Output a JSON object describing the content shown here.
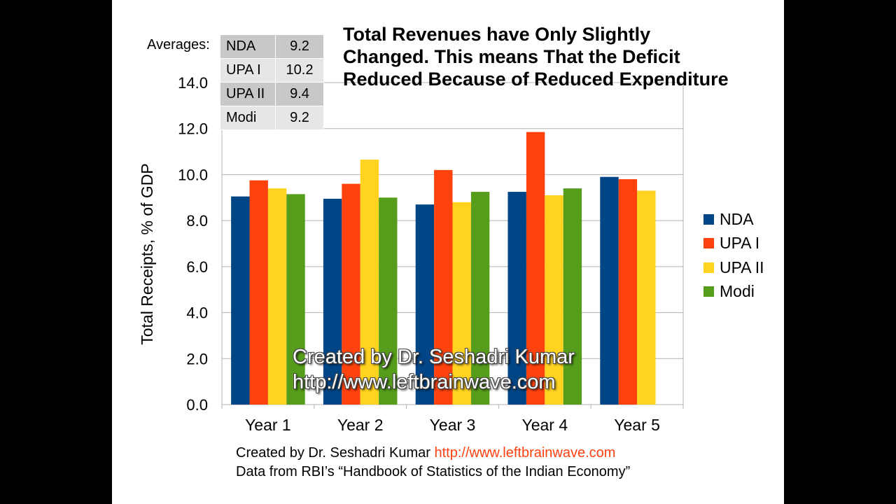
{
  "chart_data": {
    "type": "bar",
    "title": "Total Revenues have Only Slightly Changed. This means That the Deficit Reduced Because of Reduced Expenditure",
    "xlabel": "",
    "ylabel": "Total Receipts, % of GDP",
    "ylim": [
      0,
      14
    ],
    "yticks": [
      "0.0",
      "2.0",
      "4.0",
      "6.0",
      "8.0",
      "10.0",
      "12.0",
      "14.0"
    ],
    "categories": [
      "Year 1",
      "Year 2",
      "Year 3",
      "Year 4",
      "Year 5"
    ],
    "series": [
      {
        "name": "NDA",
        "color": "#004586",
        "values": [
          9.05,
          8.95,
          8.7,
          9.25,
          9.9
        ]
      },
      {
        "name": "UPA I",
        "color": "#ff420e",
        "values": [
          9.75,
          9.6,
          10.2,
          11.85,
          9.8
        ]
      },
      {
        "name": "UPA II",
        "color": "#ffd320",
        "values": [
          9.4,
          10.65,
          8.8,
          9.1,
          9.3
        ]
      },
      {
        "name": "Modi",
        "color": "#579d1c",
        "values": [
          9.15,
          9.0,
          9.25,
          9.4,
          null
        ]
      }
    ],
    "grid": true,
    "legend_position": "right"
  },
  "averages": {
    "label": "Averages:",
    "rows": [
      {
        "name": "NDA",
        "value": "9.2"
      },
      {
        "name": "UPA I",
        "value": "10.2"
      },
      {
        "name": "UPA II",
        "value": "9.4"
      },
      {
        "name": "Modi",
        "value": "9.2"
      }
    ]
  },
  "title_lines": [
    "Total Revenues have Only Slightly",
    "Changed. This means That the Deficit",
    "Reduced Because of Reduced Expenditure"
  ],
  "watermark": {
    "line1": "Created by Dr. Seshadri Kumar",
    "line2": "http://www.leftbrainwave.com"
  },
  "footer": {
    "credit": "Created by Dr. Seshadri Kumar ",
    "link": "http://www.leftbrainwave.com",
    "source": "Data from RBI’s “Handbook of Statistics of the Indian Economy”"
  }
}
